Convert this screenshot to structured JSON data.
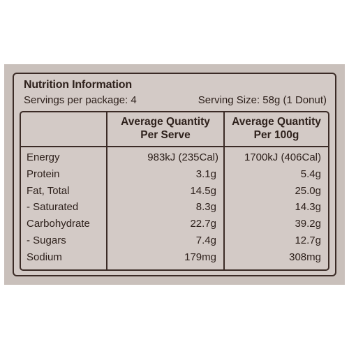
{
  "panel": {
    "title": "Nutrition Information",
    "servings_per_package": "Servings per package: 4",
    "serving_size": "Serving Size: 58g (1 Donut)"
  },
  "table": {
    "headers": {
      "per_serve_line1": "Average Quantity",
      "per_serve_line2": "Per Serve",
      "per_100g_line1": "Average Quantity",
      "per_100g_line2": "Per 100g"
    },
    "rows": [
      {
        "label": "Energy",
        "per_serve": "983kJ (235Cal)",
        "per_100g": "1700kJ (406Cal)"
      },
      {
        "label": "Protein",
        "per_serve": "3.1g",
        "per_100g": "5.4g"
      },
      {
        "label": "Fat, Total",
        "per_serve": "14.5g",
        "per_100g": "25.0g"
      },
      {
        "label": "- Saturated",
        "per_serve": "8.3g",
        "per_100g": "14.3g"
      },
      {
        "label": "Carbohydrate",
        "per_serve": "22.7g",
        "per_100g": "39.2g"
      },
      {
        "label": "- Sugars",
        "per_serve": "7.4g",
        "per_100g": "12.7g"
      },
      {
        "label": "Sodium",
        "per_serve": "179mg",
        "per_100g": "308mg"
      }
    ]
  },
  "colors": {
    "ink": "#2e211c",
    "border": "#3b2b26",
    "panel_background": "#d3cac6",
    "packet_background": "#c9c0bb"
  }
}
